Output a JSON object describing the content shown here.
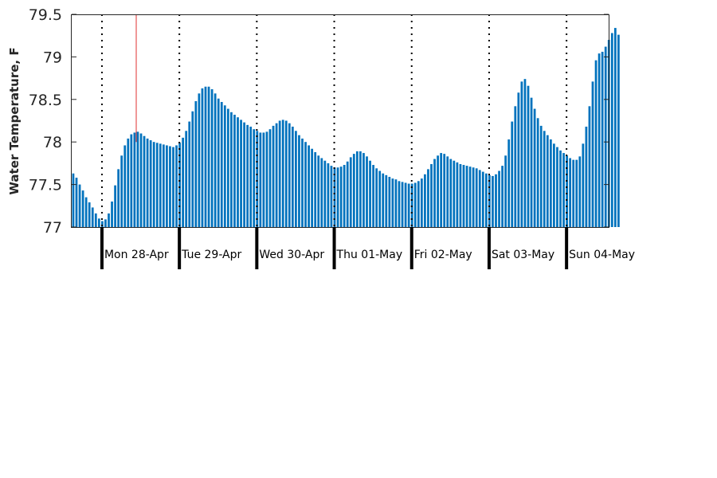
{
  "chart_data": {
    "type": "bar",
    "title": "",
    "xlabel": "",
    "ylabel": "Water Temperature, F",
    "ylim": [
      77,
      79.5
    ],
    "yticks": [
      "77",
      "77.5",
      "78",
      "78.5",
      "79",
      "79.5"
    ],
    "day_labels": [
      "Mon 28-Apr",
      "Tue 29-Apr",
      "Wed 30-Apr",
      "Thu 01-May",
      "Fri 02-May",
      "Sat 03-May",
      "Sun 04-May"
    ],
    "x_start": "2025-04-27 15:00",
    "interval_hours": 1,
    "current_time_marker": "2025-04-28 11:00",
    "bar_color": "#0072bd",
    "marker_color": "#e03030",
    "grid": false,
    "values": [
      77.63,
      77.58,
      77.5,
      77.43,
      77.35,
      77.29,
      77.23,
      77.16,
      77.1,
      77.07,
      77.09,
      77.16,
      77.3,
      77.49,
      77.68,
      77.84,
      77.96,
      78.04,
      78.09,
      78.11,
      78.12,
      78.1,
      78.07,
      78.04,
      78.02,
      78.0,
      77.99,
      77.98,
      77.97,
      77.96,
      77.95,
      77.94,
      77.96,
      77.99,
      78.05,
      78.13,
      78.24,
      78.36,
      78.48,
      78.57,
      78.63,
      78.65,
      78.65,
      78.62,
      78.57,
      78.51,
      78.47,
      78.43,
      78.39,
      78.35,
      78.32,
      78.29,
      78.26,
      78.23,
      78.2,
      78.18,
      78.15,
      78.13,
      78.11,
      78.11,
      78.12,
      78.15,
      78.19,
      78.22,
      78.25,
      78.26,
      78.25,
      78.22,
      78.18,
      78.13,
      78.08,
      78.04,
      78.0,
      77.96,
      77.92,
      77.88,
      77.84,
      77.81,
      77.78,
      77.75,
      77.72,
      77.7,
      77.7,
      77.71,
      77.73,
      77.77,
      77.82,
      77.86,
      77.89,
      77.89,
      77.87,
      77.83,
      77.78,
      77.73,
      77.69,
      77.66,
      77.63,
      77.61,
      77.59,
      77.57,
      77.56,
      77.54,
      77.53,
      77.52,
      77.51,
      77.51,
      77.52,
      77.54,
      77.57,
      77.62,
      77.68,
      77.74,
      77.8,
      77.84,
      77.87,
      77.86,
      77.83,
      77.8,
      77.78,
      77.76,
      77.74,
      77.73,
      77.72,
      77.71,
      77.7,
      77.69,
      77.67,
      77.65,
      77.63,
      77.61,
      77.6,
      77.62,
      77.66,
      77.72,
      77.84,
      78.03,
      78.24,
      78.42,
      78.58,
      78.71,
      78.74,
      78.66,
      78.52,
      78.39,
      78.28,
      78.19,
      78.13,
      78.08,
      78.03,
      77.98,
      77.94,
      77.9,
      77.87,
      77.84,
      77.81,
      77.79,
      77.79,
      77.83,
      77.98,
      78.18,
      78.42,
      78.71,
      78.96,
      79.04,
      79.06,
      79.12,
      79.2,
      79.28,
      79.34,
      79.26
    ]
  }
}
